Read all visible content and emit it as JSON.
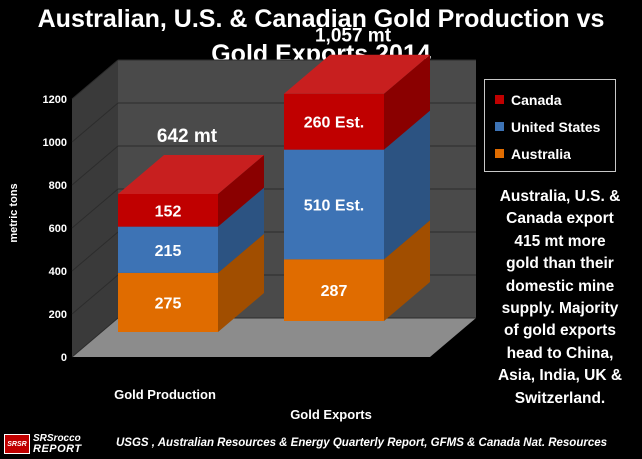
{
  "title_line1": "Australian, U.S. & Canadian Gold Production vs",
  "title_line2": "Gold Exports 2014",
  "chart_data": {
    "type": "bar",
    "stacked": true,
    "three_d": true,
    "categories": [
      "Gold Production",
      "Gold Exports"
    ],
    "series": [
      {
        "name": "Australia",
        "values": [
          275,
          287
        ],
        "labels": [
          "275",
          "287"
        ],
        "color": "#e06c00"
      },
      {
        "name": "United States",
        "values": [
          215,
          510
        ],
        "labels": [
          "215",
          "510 Est."
        ],
        "color": "#3d73b5"
      },
      {
        "name": "Canada",
        "values": [
          152,
          260
        ],
        "labels": [
          "152",
          "260 Est."
        ],
        "color": "#c00000"
      }
    ],
    "totals": [
      "642 mt",
      "1,057 mt"
    ],
    "ylabel": "metric tons",
    "ylim": [
      0,
      1200
    ],
    "yticks": [
      0,
      200,
      400,
      600,
      800,
      1000,
      1200
    ],
    "grid": true,
    "legend": "top-right"
  },
  "legend": [
    {
      "label": "Canada",
      "color": "#c00000"
    },
    {
      "label": "United States",
      "color": "#3d73b5"
    },
    {
      "label": "Australia",
      "color": "#e06c00"
    }
  ],
  "note_lines": [
    "Australia, U.S. &",
    "Canada export",
    "415 mt more",
    "gold than their",
    "domestic mine",
    "supply.  Majority",
    "of gold exports",
    "head to China,",
    "Asia, India, UK &",
    "Switzerland."
  ],
  "footer": {
    "logo_badge": "SRSR",
    "logo_line1": "SRSrocco",
    "logo_line2": "REPORT",
    "source": "USGS , Australian Resources & Energy Quarterly Report, GFMS & Canada Nat. Resources"
  }
}
